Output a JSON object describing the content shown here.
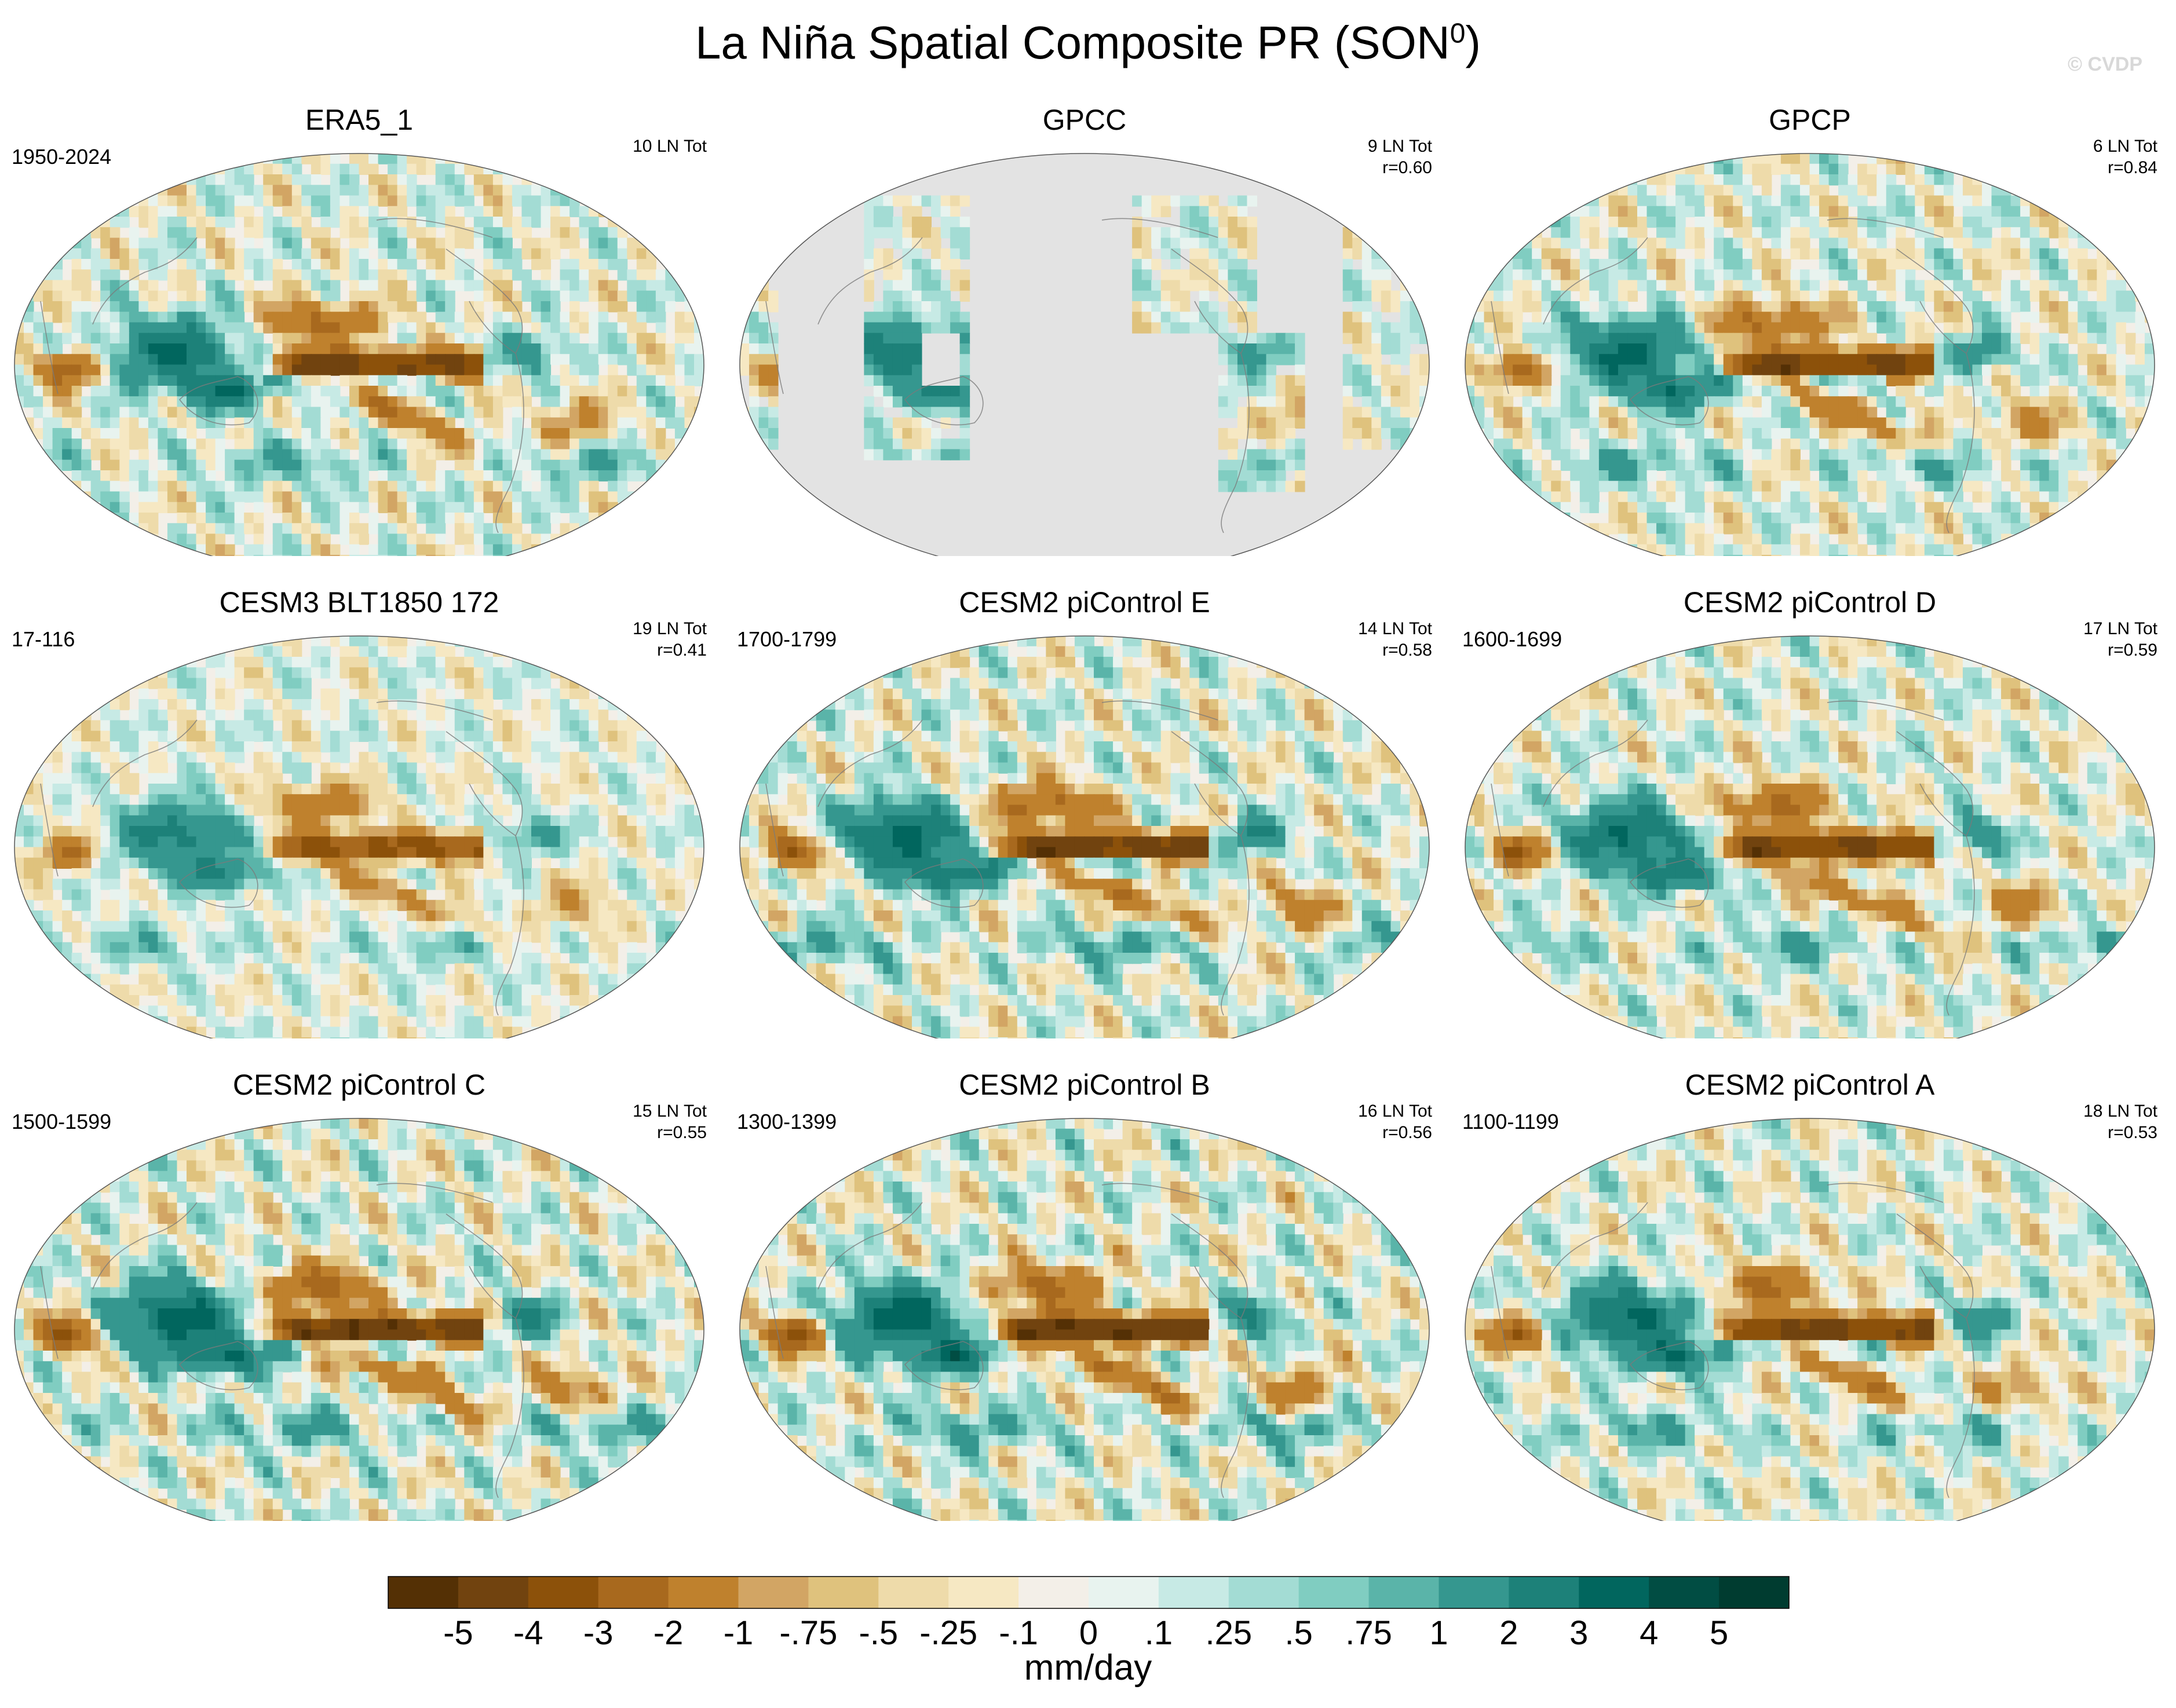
{
  "title": "La Niña Spatial Composite PR (SON",
  "title_superscript": "0",
  "title_close": ")",
  "watermark": "© CVDP",
  "colors": {
    "scale": [
      "#543005",
      "#71430f",
      "#8c510a",
      "#a8691e",
      "#bf812d",
      "#d2a564",
      "#dfc27d",
      "#eedbaa",
      "#f6e8c3",
      "#f3efe8",
      "#e8f3ef",
      "#c7eae5",
      "#a3dcd4",
      "#80cdc1",
      "#5ab4a9",
      "#35978f",
      "#1d8179",
      "#01665e",
      "#014d43",
      "#003c30"
    ],
    "ocean": "#f3efe8",
    "land_mask": "#e3e3e3"
  },
  "panels": [
    {
      "title": "ERA5_1",
      "years": "1950-2024",
      "count": "10 LN Tot",
      "r": "",
      "strength": 1.0,
      "masked": false
    },
    {
      "title": "GPCC",
      "years": "",
      "count": "9 LN Tot",
      "r": "r=0.60",
      "strength": 0.8,
      "masked": true
    },
    {
      "title": "GPCP",
      "years": "",
      "count": "6 LN Tot",
      "r": "r=0.84",
      "strength": 1.0,
      "masked": false
    },
    {
      "title": "CESM3 BLT1850 172",
      "years": "17-116",
      "count": "19 LN Tot",
      "r": "r=0.41",
      "strength": 0.75,
      "masked": false
    },
    {
      "title": "CESM2 piControl E",
      "years": "1700-1799",
      "count": "14 LN Tot",
      "r": "r=0.58",
      "strength": 1.1,
      "masked": false
    },
    {
      "title": "CESM2 piControl D",
      "years": "1600-1699",
      "count": "17 LN Tot",
      "r": "r=0.59",
      "strength": 1.0,
      "masked": false
    },
    {
      "title": "CESM2 piControl C",
      "years": "1500-1599",
      "count": "15 LN Tot",
      "r": "r=0.55",
      "strength": 1.15,
      "masked": false
    },
    {
      "title": "CESM2 piControl B",
      "years": "1300-1399",
      "count": "16 LN Tot",
      "r": "r=0.56",
      "strength": 1.15,
      "masked": false
    },
    {
      "title": "CESM2 piControl A",
      "years": "1100-1199",
      "count": "18 LN Tot",
      "r": "r=0.53",
      "strength": 1.0,
      "masked": false
    }
  ],
  "chart_data": {
    "type": "heatmap",
    "projection": "Robinson, Pacific-centered",
    "variable": "PR",
    "season": "SON",
    "colorbar": {
      "labels": [
        "-5",
        "-4",
        "-3",
        "-2",
        "-1",
        "-.75",
        "-.5",
        "-.25",
        "-.1",
        "0",
        ".1",
        ".25",
        ".5",
        ".75",
        "1",
        "2",
        "3",
        "4",
        "5"
      ],
      "bin_count": 20,
      "unit": "mm/day"
    },
    "approximate_features": [
      {
        "name": "equatorial central/east Pacific dry tongue",
        "sign": "negative",
        "magnitude_mm_day": -4
      },
      {
        "name": "Maritime Continent / Indian Ocean wet",
        "sign": "positive",
        "magnitude_mm_day": 3
      },
      {
        "name": "west Indian Ocean dry",
        "sign": "negative",
        "magnitude_mm_day": -2
      },
      {
        "name": "SPCZ dry diagonal",
        "sign": "negative",
        "magnitude_mm_day": -1
      }
    ]
  }
}
